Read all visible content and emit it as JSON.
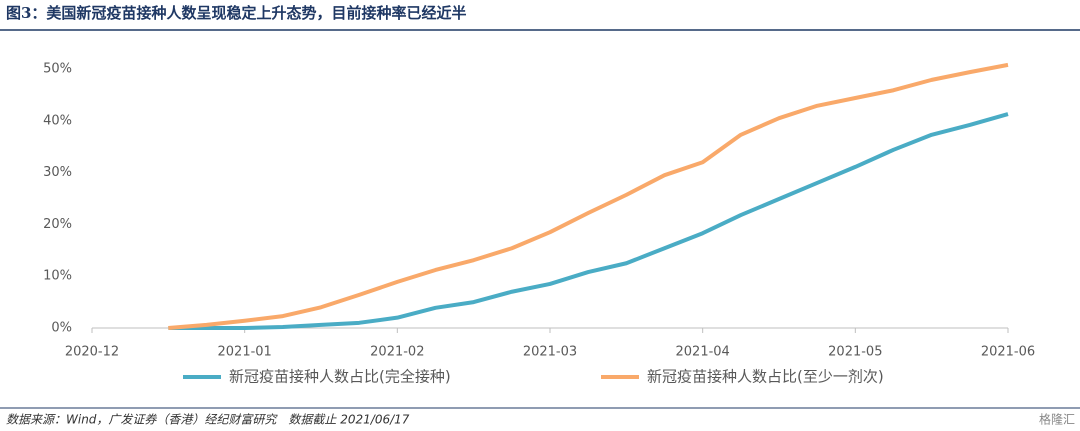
{
  "chart_data": {
    "type": "line",
    "title": "图3：美国新冠疫苗接种人数呈现稳定上升态势，目前接种率已经近半",
    "source": "数据来源：Wind，广发证券（香港）经纪财富研究　数据截止 2021/06/17",
    "watermark": "格隆汇",
    "categories": [
      "2020-12",
      null,
      null,
      null,
      "2021-01",
      null,
      null,
      null,
      "2021-02",
      null,
      null,
      null,
      "2021-03",
      null,
      null,
      null,
      "2021-04",
      null,
      null,
      null,
      "2021-05",
      null,
      null,
      null,
      "2021-06"
    ],
    "series": [
      {
        "name": "新冠疫苗接种人数占比(完全接种)",
        "color": "#4aacc5",
        "values": [
          null,
          null,
          0,
          0,
          0,
          0.2,
          0.6,
          1.0,
          2.0,
          3.9,
          5.0,
          7.0,
          8.5,
          10.8,
          12.5,
          15.4,
          18.3,
          21.8,
          24.9,
          28.0,
          31.1,
          34.4,
          37.3,
          39.2,
          41.3
        ]
      },
      {
        "name": "新冠疫苗接种人数占比(至少一剂次)",
        "color": "#f9a96a",
        "values": [
          null,
          null,
          0,
          0.6,
          1.4,
          2.3,
          4.0,
          6.4,
          8.9,
          11.2,
          13.1,
          15.4,
          18.5,
          22.2,
          25.7,
          29.5,
          32.0,
          37.3,
          40.5,
          42.9,
          44.4,
          45.9,
          47.9,
          49.4,
          50.8
        ]
      }
    ],
    "ylim": [
      0,
      50
    ],
    "yticks": [
      {
        "value": 0,
        "label": "0%"
      },
      {
        "value": 10,
        "label": "10%"
      },
      {
        "value": 20,
        "label": "20%"
      },
      {
        "value": 30,
        "label": "30%"
      },
      {
        "value": 40,
        "label": "40%"
      },
      {
        "value": 50,
        "label": "50%"
      }
    ],
    "grid": false
  }
}
